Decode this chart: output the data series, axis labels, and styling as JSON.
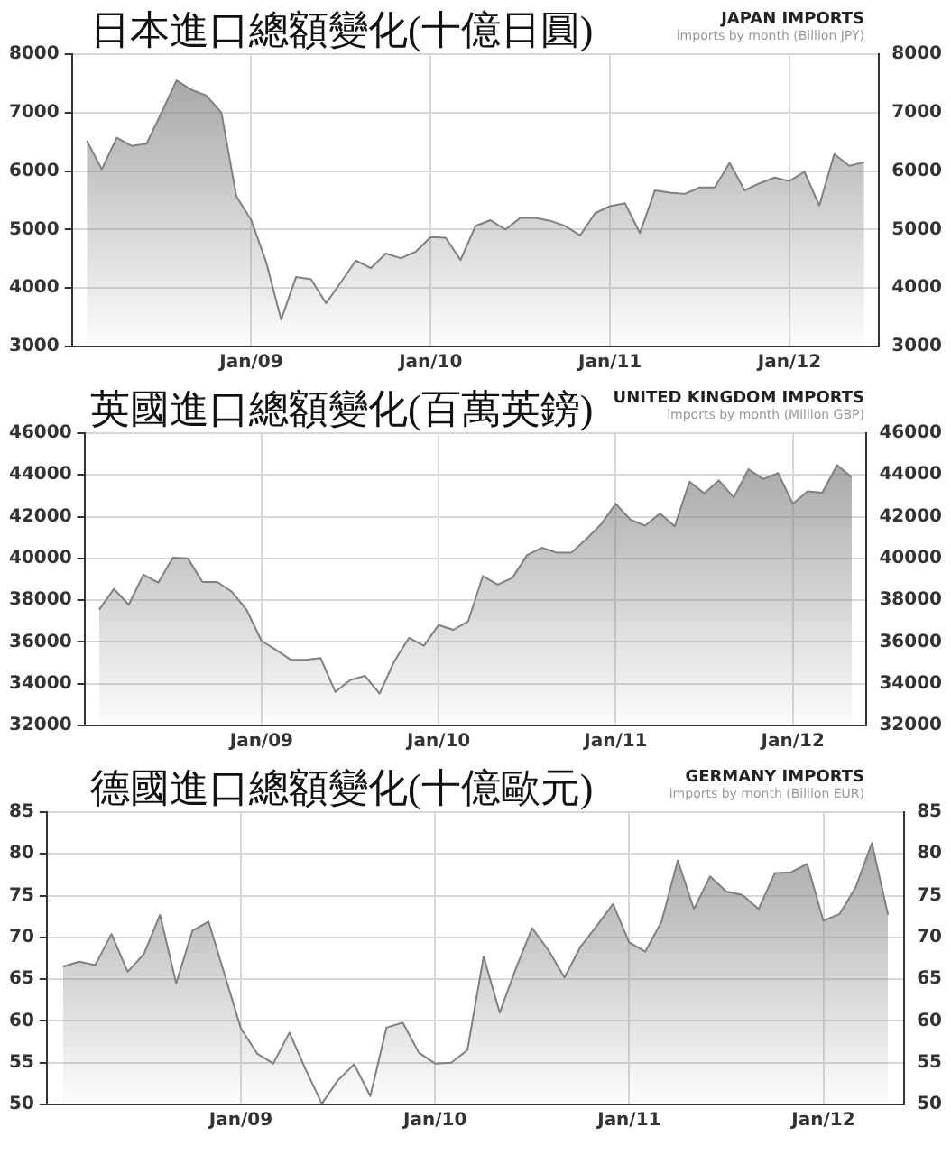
{
  "chart_data": [
    {
      "type": "area",
      "title": "日本進口總額變化(十億日圓)",
      "subtitle": "JAPAN IMPORTS",
      "annotations": [
        "imports by month (Billion JPY)"
      ],
      "x": [
        "2008-02",
        "2008-03",
        "2008-04",
        "2008-05",
        "2008-06",
        "2008-07",
        "2008-08",
        "2008-09",
        "2008-10",
        "2008-11",
        "2008-12",
        "2009-01",
        "2009-02",
        "2009-03",
        "2009-04",
        "2009-05",
        "2009-06",
        "2009-07",
        "2009-08",
        "2009-09",
        "2009-10",
        "2009-11",
        "2009-12",
        "2010-01",
        "2010-02",
        "2010-03",
        "2010-04",
        "2010-05",
        "2010-06",
        "2010-07",
        "2010-08",
        "2010-09",
        "2010-10",
        "2010-11",
        "2010-12",
        "2011-01",
        "2011-02",
        "2011-03",
        "2011-04",
        "2011-05",
        "2011-06",
        "2011-07",
        "2011-08",
        "2011-09",
        "2011-10",
        "2011-11",
        "2011-12",
        "2012-01",
        "2012-02",
        "2012-03",
        "2012-04",
        "2012-05",
        "2012-06"
      ],
      "series": [
        {
          "color": "#808080",
          "values": [
            6520,
            6030,
            6570,
            6430,
            6470,
            7000,
            7550,
            7390,
            7290,
            7000,
            5570,
            5160,
            4440,
            3460,
            4190,
            4150,
            3740,
            4100,
            4470,
            4340,
            4590,
            4510,
            4620,
            4870,
            4860,
            4480,
            5060,
            5160,
            5000,
            5200,
            5200,
            5150,
            5060,
            4900,
            5280,
            5400,
            5450,
            4940,
            5670,
            5630,
            5610,
            5720,
            5720,
            6140,
            5670,
            5790,
            5890,
            5830,
            5990,
            5410,
            6290,
            6090,
            6150
          ]
        }
      ],
      "xlim": [
        "2008-01",
        "2012-07"
      ],
      "xticks": [
        {
          "value": "2009-01",
          "label": "Jan/09"
        },
        {
          "value": "2010-01",
          "label": "Jan/10"
        },
        {
          "value": "2011-01",
          "label": "Jan/11"
        },
        {
          "value": "2012-01",
          "label": "Jan/12"
        }
      ],
      "ylim": [
        3000,
        8000
      ],
      "yticks": [
        3000,
        4000,
        5000,
        6000,
        7000,
        8000
      ],
      "y2lim": [
        3000,
        8000
      ],
      "y2ticks": [
        3000,
        4000,
        5000,
        6000,
        7000,
        8000
      ],
      "grid": true
    },
    {
      "type": "area",
      "title": "英國進口總額變化(百萬英鎊)",
      "subtitle": "UNITED KINGDOM IMPORTS",
      "annotations": [
        "imports by month (Million GBP)"
      ],
      "x": [
        "2008-02",
        "2008-03",
        "2008-04",
        "2008-05",
        "2008-06",
        "2008-07",
        "2008-08",
        "2008-09",
        "2008-10",
        "2008-11",
        "2008-12",
        "2009-01",
        "2009-02",
        "2009-03",
        "2009-04",
        "2009-05",
        "2009-06",
        "2009-07",
        "2009-08",
        "2009-09",
        "2009-10",
        "2009-11",
        "2009-12",
        "2010-01",
        "2010-02",
        "2010-03",
        "2010-04",
        "2010-05",
        "2010-06",
        "2010-07",
        "2010-08",
        "2010-09",
        "2010-10",
        "2010-11",
        "2010-12",
        "2011-01",
        "2011-02",
        "2011-03",
        "2011-04",
        "2011-05",
        "2011-06",
        "2011-07",
        "2011-08",
        "2011-09",
        "2011-10",
        "2011-11",
        "2011-12",
        "2012-01",
        "2012-02",
        "2012-03",
        "2012-04",
        "2012-05"
      ],
      "series": [
        {
          "color": "#808080",
          "values": [
            37550,
            38540,
            37780,
            39220,
            38840,
            40040,
            40010,
            38870,
            38870,
            38400,
            37520,
            36050,
            35610,
            35140,
            35140,
            35230,
            33610,
            34170,
            34380,
            33530,
            35080,
            36200,
            35820,
            36810,
            36580,
            36990,
            39160,
            38750,
            39070,
            40160,
            40510,
            40280,
            40280,
            40920,
            41630,
            42620,
            41860,
            41570,
            42150,
            41540,
            43680,
            43120,
            43740,
            42920,
            44270,
            43800,
            44090,
            42620,
            43210,
            43150,
            44470,
            43890
          ]
        }
      ],
      "xlim": [
        "2008-01",
        "2012-06"
      ],
      "xticks": [
        {
          "value": "2009-01",
          "label": "Jan/09"
        },
        {
          "value": "2010-01",
          "label": "Jan/10"
        },
        {
          "value": "2011-01",
          "label": "Jan/11"
        },
        {
          "value": "2012-01",
          "label": "Jan/12"
        }
      ],
      "ylim": [
        32000,
        46000
      ],
      "yticks": [
        32000,
        34000,
        36000,
        38000,
        40000,
        42000,
        44000,
        46000
      ],
      "y2lim": [
        32000,
        46000
      ],
      "y2ticks": [
        32000,
        34000,
        36000,
        38000,
        40000,
        42000,
        44000,
        46000
      ],
      "grid": true
    },
    {
      "type": "area",
      "title": "德國進口總額變化(十億歐元)",
      "subtitle": "GERMANY IMPORTS",
      "annotations": [
        "imports by month (Billion EUR)"
      ],
      "x": [
        "2008-02",
        "2008-03",
        "2008-04",
        "2008-05",
        "2008-06",
        "2008-07",
        "2008-08",
        "2008-09",
        "2008-10",
        "2008-11",
        "2008-12",
        "2009-01",
        "2009-02",
        "2009-03",
        "2009-04",
        "2009-05",
        "2009-06",
        "2009-07",
        "2009-08",
        "2009-09",
        "2009-10",
        "2009-11",
        "2009-12",
        "2010-01",
        "2010-02",
        "2010-03",
        "2010-04",
        "2010-05",
        "2010-06",
        "2010-07",
        "2010-08",
        "2010-09",
        "2010-10",
        "2010-11",
        "2010-12",
        "2011-01",
        "2011-02",
        "2011-03",
        "2011-04",
        "2011-05",
        "2011-06",
        "2011-07",
        "2011-08",
        "2011-09",
        "2011-10",
        "2011-11",
        "2011-12",
        "2012-01",
        "2012-02",
        "2012-03",
        "2012-04",
        "2012-05"
      ],
      "series": [
        {
          "color": "#808080",
          "values": [
            66.5,
            67.1,
            66.7,
            70.4,
            65.9,
            68.0,
            72.7,
            64.5,
            70.8,
            71.9,
            65.5,
            59.1,
            56.1,
            54.9,
            58.6,
            54.2,
            50.1,
            52.9,
            54.8,
            51.0,
            59.2,
            59.8,
            56.2,
            54.9,
            55.0,
            56.5,
            67.7,
            61.0,
            66.3,
            71.1,
            68.5,
            65.2,
            68.9,
            71.4,
            74.0,
            69.4,
            68.3,
            71.9,
            79.2,
            73.4,
            77.3,
            75.5,
            75.1,
            73.4,
            77.7,
            77.8,
            78.8,
            72.0,
            72.8,
            76.0,
            81.3,
            72.7
          ]
        }
      ],
      "xlim": [
        "2008-01",
        "2012-06"
      ],
      "xticks": [
        {
          "value": "2009-01",
          "label": "Jan/09"
        },
        {
          "value": "2010-01",
          "label": "Jan/10"
        },
        {
          "value": "2011-01",
          "label": "Jan/11"
        },
        {
          "value": "2012-01",
          "label": "Jan/12"
        }
      ],
      "ylim": [
        50,
        85
      ],
      "yticks": [
        50,
        55,
        60,
        65,
        70,
        75,
        80,
        85
      ],
      "y2lim": [
        50,
        85
      ],
      "y2ticks": [
        50,
        55,
        60,
        65,
        70,
        75,
        80,
        85
      ],
      "grid": true
    }
  ]
}
